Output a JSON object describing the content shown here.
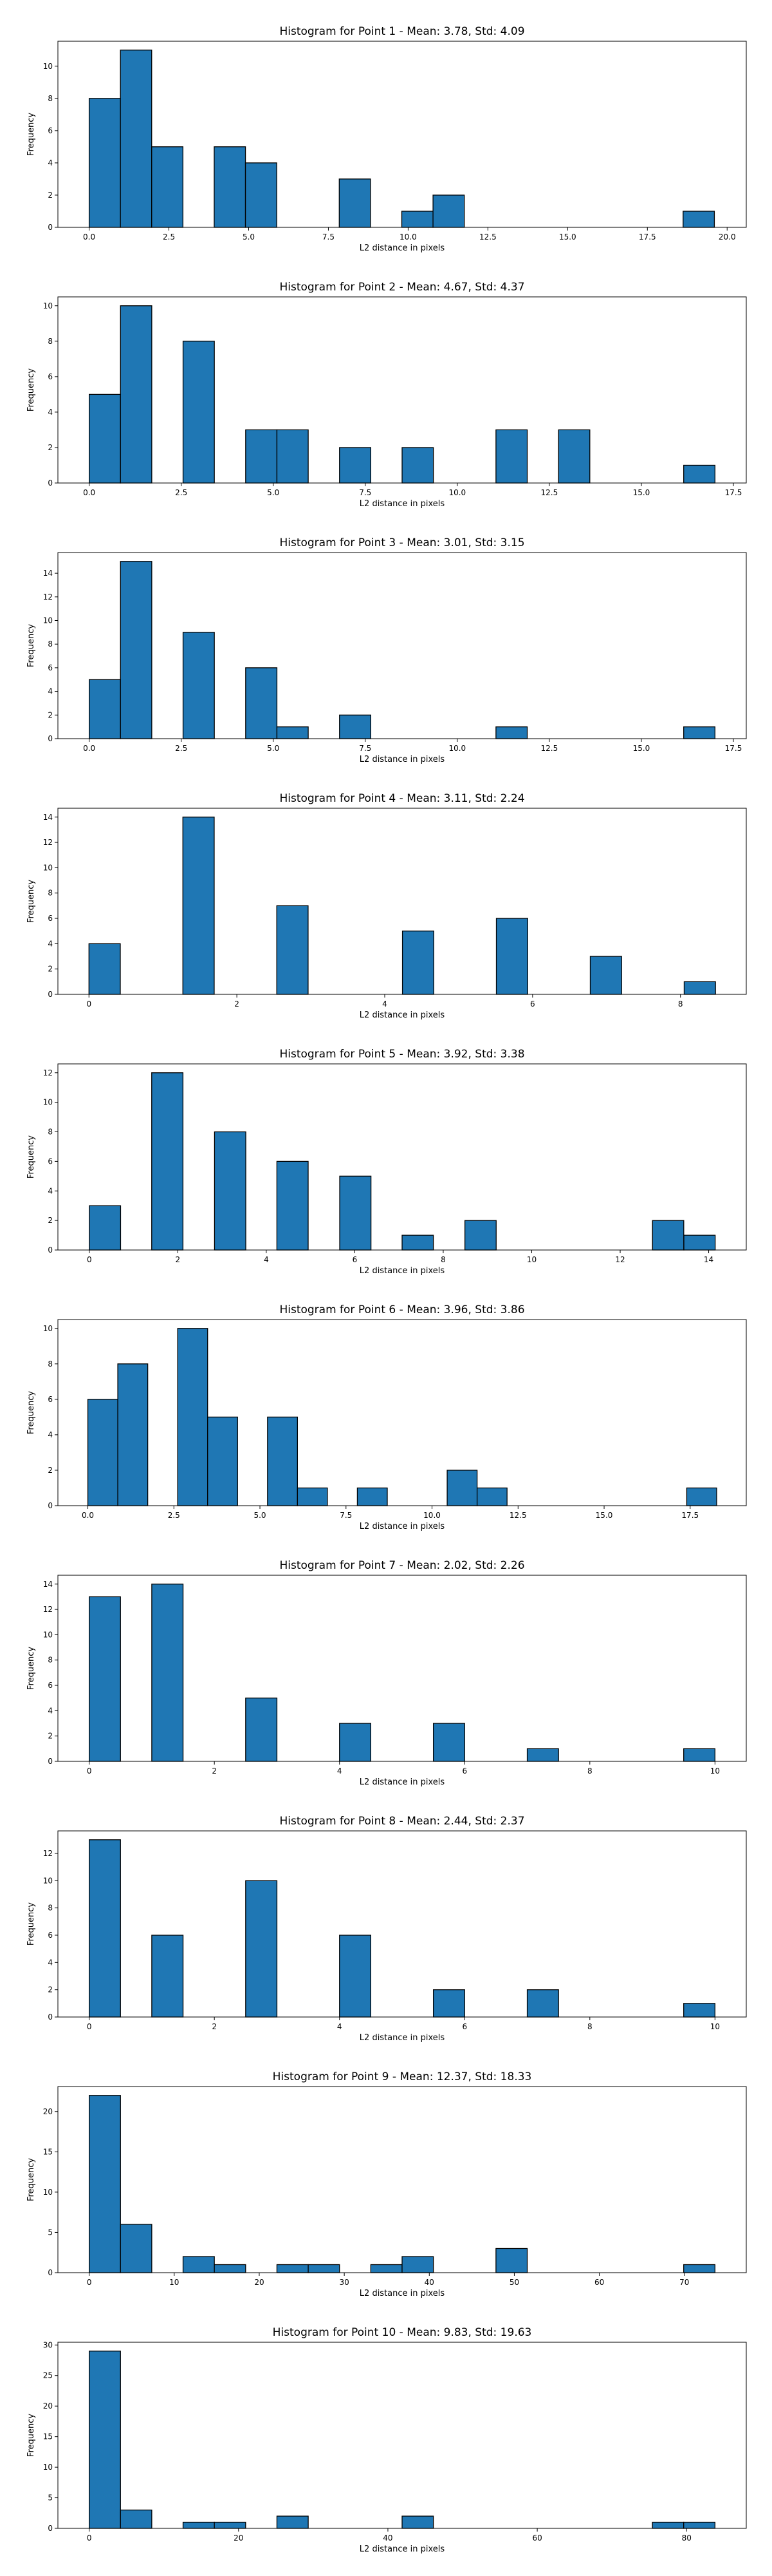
{
  "chart_data": [
    {
      "type": "bar",
      "title": "Histogram for Point 1 - Mean: 3.78, Std: 4.09",
      "xlabel": "L2 distance in pixels",
      "ylabel": "Frequency",
      "xlim": [
        -0.98,
        20.6
      ],
      "ylim": [
        0,
        11.55
      ],
      "xticks": [
        0.0,
        2.5,
        5.0,
        7.5,
        10.0,
        12.5,
        15.0,
        17.5,
        20.0
      ],
      "xtick_labels": [
        "0.0",
        "2.5",
        "5.0",
        "7.5",
        "10.0",
        "12.5",
        "15.0",
        "17.5",
        "20.0"
      ],
      "yticks": [
        0,
        2,
        4,
        6,
        8,
        10
      ],
      "ytick_labels": [
        "0",
        "2",
        "4",
        "6",
        "8",
        "10"
      ],
      "bin_width": 0.98,
      "bins": [
        {
          "x": 0.0,
          "count": 8
        },
        {
          "x": 0.98,
          "count": 11
        },
        {
          "x": 1.96,
          "count": 5
        },
        {
          "x": 3.92,
          "count": 5
        },
        {
          "x": 4.9,
          "count": 4
        },
        {
          "x": 7.84,
          "count": 3
        },
        {
          "x": 9.8,
          "count": 1
        },
        {
          "x": 10.78,
          "count": 2
        },
        {
          "x": 18.62,
          "count": 1
        }
      ]
    },
    {
      "type": "bar",
      "title": "Histogram for Point 2 - Mean: 4.67, Std: 4.37",
      "xlabel": "L2 distance in pixels",
      "ylabel": "Frequency",
      "xlim": [
        -0.85,
        17.85
      ],
      "ylim": [
        0,
        10.5
      ],
      "xticks": [
        0.0,
        2.5,
        5.0,
        7.5,
        10.0,
        12.5,
        15.0,
        17.5
      ],
      "xtick_labels": [
        "0.0",
        "2.5",
        "5.0",
        "7.5",
        "10.0",
        "12.5",
        "15.0",
        "17.5"
      ],
      "yticks": [
        0,
        2,
        4,
        6,
        8,
        10
      ],
      "ytick_labels": [
        "0",
        "2",
        "4",
        "6",
        "8",
        "10"
      ],
      "bin_width": 0.85,
      "bins": [
        {
          "x": 0.0,
          "count": 5
        },
        {
          "x": 0.85,
          "count": 10
        },
        {
          "x": 2.55,
          "count": 8
        },
        {
          "x": 4.25,
          "count": 3
        },
        {
          "x": 5.1,
          "count": 3
        },
        {
          "x": 6.8,
          "count": 2
        },
        {
          "x": 8.5,
          "count": 2
        },
        {
          "x": 11.05,
          "count": 3
        },
        {
          "x": 12.75,
          "count": 3
        },
        {
          "x": 16.15,
          "count": 1
        }
      ]
    },
    {
      "type": "bar",
      "title": "Histogram for Point 3 - Mean: 3.01, Std: 3.15",
      "xlabel": "L2 distance in pixels",
      "ylabel": "Frequency",
      "xlim": [
        -0.85,
        17.85
      ],
      "ylim": [
        0,
        15.75
      ],
      "xticks": [
        0.0,
        2.5,
        5.0,
        7.5,
        10.0,
        12.5,
        15.0,
        17.5
      ],
      "xtick_labels": [
        "0.0",
        "2.5",
        "5.0",
        "7.5",
        "10.0",
        "12.5",
        "15.0",
        "17.5"
      ],
      "yticks": [
        0,
        2,
        4,
        6,
        8,
        10,
        12,
        14
      ],
      "ytick_labels": [
        "0",
        "2",
        "4",
        "6",
        "8",
        "10",
        "12",
        "14"
      ],
      "bin_width": 0.85,
      "bins": [
        {
          "x": 0.0,
          "count": 5
        },
        {
          "x": 0.85,
          "count": 15
        },
        {
          "x": 2.55,
          "count": 9
        },
        {
          "x": 4.25,
          "count": 6
        },
        {
          "x": 5.1,
          "count": 1
        },
        {
          "x": 6.8,
          "count": 2
        },
        {
          "x": 11.05,
          "count": 1
        },
        {
          "x": 16.15,
          "count": 1
        }
      ]
    },
    {
      "type": "bar",
      "title": "Histogram for Point 4 - Mean: 3.11, Std: 2.24",
      "xlabel": "L2 distance in pixels",
      "ylabel": "Frequency",
      "xlim": [
        -0.42,
        8.89
      ],
      "ylim": [
        0,
        14.7
      ],
      "xticks": [
        0,
        2,
        4,
        6,
        8
      ],
      "xtick_labels": [
        "0",
        "2",
        "4",
        "6",
        "8"
      ],
      "yticks": [
        0,
        2,
        4,
        6,
        8,
        10,
        12,
        14
      ],
      "ytick_labels": [
        "0",
        "2",
        "4",
        "6",
        "8",
        "10",
        "12",
        "14"
      ],
      "bin_width": 0.424,
      "bins": [
        {
          "x": 0.0,
          "count": 4
        },
        {
          "x": 1.27,
          "count": 14
        },
        {
          "x": 2.54,
          "count": 7
        },
        {
          "x": 4.24,
          "count": 5
        },
        {
          "x": 5.51,
          "count": 6
        },
        {
          "x": 6.78,
          "count": 3
        },
        {
          "x": 8.05,
          "count": 1
        }
      ]
    },
    {
      "type": "bar",
      "title": "Histogram for Point 5 - Mean: 3.92, Std: 3.38",
      "xlabel": "L2 distance in pixels",
      "ylabel": "Frequency",
      "xlim": [
        -0.71,
        14.85
      ],
      "ylim": [
        0,
        12.6
      ],
      "xticks": [
        0,
        2,
        4,
        6,
        8,
        10,
        12,
        14
      ],
      "xtick_labels": [
        "0",
        "2",
        "4",
        "6",
        "8",
        "10",
        "12",
        "14"
      ],
      "yticks": [
        0,
        2,
        4,
        6,
        8,
        10,
        12
      ],
      "ytick_labels": [
        "0",
        "2",
        "4",
        "6",
        "8",
        "10",
        "12"
      ],
      "bin_width": 0.707,
      "bins": [
        {
          "x": 0.0,
          "count": 3
        },
        {
          "x": 1.41,
          "count": 12
        },
        {
          "x": 2.83,
          "count": 8
        },
        {
          "x": 4.24,
          "count": 6
        },
        {
          "x": 5.66,
          "count": 5
        },
        {
          "x": 7.07,
          "count": 1
        },
        {
          "x": 8.49,
          "count": 2
        },
        {
          "x": 12.73,
          "count": 2
        },
        {
          "x": 13.44,
          "count": 1
        }
      ]
    },
    {
      "type": "bar",
      "title": "Histogram for Point 6 - Mean: 3.96, Std: 3.86",
      "xlabel": "L2 distance in pixels",
      "ylabel": "Frequency",
      "xlim": [
        -0.87,
        19.13
      ],
      "ylim": [
        0,
        10.5
      ],
      "xticks": [
        0.0,
        2.5,
        5.0,
        7.5,
        10.0,
        12.5,
        15.0,
        17.5
      ],
      "xtick_labels": [
        "0.0",
        "2.5",
        "5.0",
        "7.5",
        "10.0",
        "12.5",
        "15.0",
        "17.5"
      ],
      "yticks": [
        0,
        2,
        4,
        6,
        8,
        10
      ],
      "ytick_labels": [
        "0",
        "2",
        "4",
        "6",
        "8",
        "10"
      ],
      "bin_width": 0.87,
      "bins": [
        {
          "x": 0.0,
          "count": 6
        },
        {
          "x": 0.87,
          "count": 8
        },
        {
          "x": 2.61,
          "count": 10
        },
        {
          "x": 3.48,
          "count": 5
        },
        {
          "x": 5.22,
          "count": 5
        },
        {
          "x": 6.09,
          "count": 1
        },
        {
          "x": 7.83,
          "count": 1
        },
        {
          "x": 10.44,
          "count": 2
        },
        {
          "x": 11.31,
          "count": 1
        },
        {
          "x": 17.4,
          "count": 1
        }
      ]
    },
    {
      "type": "bar",
      "title": "Histogram for Point 7 - Mean: 2.02, Std: 2.26",
      "xlabel": "L2 distance in pixels",
      "ylabel": "Frequency",
      "xlim": [
        -0.5,
        10.5
      ],
      "ylim": [
        0,
        14.7
      ],
      "xticks": [
        0,
        2,
        4,
        6,
        8,
        10
      ],
      "xtick_labels": [
        "0",
        "2",
        "4",
        "6",
        "8",
        "10"
      ],
      "yticks": [
        0,
        2,
        4,
        6,
        8,
        10,
        12,
        14
      ],
      "ytick_labels": [
        "0",
        "2",
        "4",
        "6",
        "8",
        "10",
        "12",
        "14"
      ],
      "bin_width": 0.5,
      "bins": [
        {
          "x": 0.0,
          "count": 13
        },
        {
          "x": 1.0,
          "count": 14
        },
        {
          "x": 2.5,
          "count": 5
        },
        {
          "x": 4.0,
          "count": 3
        },
        {
          "x": 5.5,
          "count": 3
        },
        {
          "x": 7.0,
          "count": 1
        },
        {
          "x": 9.5,
          "count": 1
        }
      ]
    },
    {
      "type": "bar",
      "title": "Histogram for Point 8 - Mean: 2.44, Std: 2.37",
      "xlabel": "L2 distance in pixels",
      "ylabel": "Frequency",
      "xlim": [
        -0.5,
        10.5
      ],
      "ylim": [
        0,
        13.65
      ],
      "xticks": [
        0,
        2,
        4,
        6,
        8,
        10
      ],
      "xtick_labels": [
        "0",
        "2",
        "4",
        "6",
        "8",
        "10"
      ],
      "yticks": [
        0,
        2,
        4,
        6,
        8,
        10,
        12
      ],
      "ytick_labels": [
        "0",
        "2",
        "4",
        "6",
        "8",
        "10",
        "12"
      ],
      "bin_width": 0.5,
      "bins": [
        {
          "x": 0.0,
          "count": 13
        },
        {
          "x": 1.0,
          "count": 6
        },
        {
          "x": 2.5,
          "count": 10
        },
        {
          "x": 4.0,
          "count": 6
        },
        {
          "x": 5.5,
          "count": 2
        },
        {
          "x": 7.0,
          "count": 2
        },
        {
          "x": 9.5,
          "count": 1
        }
      ]
    },
    {
      "type": "bar",
      "title": "Histogram for Point 9 - Mean: 12.37, Std: 18.33",
      "xlabel": "L2 distance in pixels",
      "ylabel": "Frequency",
      "xlim": [
        -3.68,
        77.28
      ],
      "ylim": [
        0,
        23.1
      ],
      "xticks": [
        0,
        10,
        20,
        30,
        40,
        50,
        60,
        70
      ],
      "xtick_labels": [
        "0",
        "10",
        "20",
        "30",
        "40",
        "50",
        "60",
        "70"
      ],
      "yticks": [
        0,
        5,
        10,
        15,
        20
      ],
      "ytick_labels": [
        "0",
        "5",
        "10",
        "15",
        "20"
      ],
      "bin_width": 3.68,
      "bins": [
        {
          "x": 0.0,
          "count": 22
        },
        {
          "x": 3.68,
          "count": 6
        },
        {
          "x": 11.04,
          "count": 2
        },
        {
          "x": 14.72,
          "count": 1
        },
        {
          "x": 22.08,
          "count": 1
        },
        {
          "x": 25.76,
          "count": 1
        },
        {
          "x": 33.12,
          "count": 1
        },
        {
          "x": 36.8,
          "count": 2
        },
        {
          "x": 47.84,
          "count": 3
        },
        {
          "x": 69.92,
          "count": 1
        }
      ]
    },
    {
      "type": "bar",
      "title": "Histogram for Point 10 - Mean: 9.83, Std: 19.63",
      "xlabel": "L2 distance in pixels",
      "ylabel": "Frequency",
      "xlim": [
        -4.19,
        87.99
      ],
      "ylim": [
        0,
        30.45
      ],
      "xticks": [
        0,
        20,
        40,
        60,
        80
      ],
      "xtick_labels": [
        "0",
        "20",
        "40",
        "60",
        "80"
      ],
      "yticks": [
        0,
        5,
        10,
        15,
        20,
        25,
        30
      ],
      "ytick_labels": [
        "0",
        "5",
        "10",
        "15",
        "20",
        "25",
        "30"
      ],
      "bin_width": 4.19,
      "bins": [
        {
          "x": 0.0,
          "count": 29
        },
        {
          "x": 4.19,
          "count": 3
        },
        {
          "x": 12.57,
          "count": 1
        },
        {
          "x": 16.76,
          "count": 1
        },
        {
          "x": 25.14,
          "count": 2
        },
        {
          "x": 41.9,
          "count": 2
        },
        {
          "x": 75.42,
          "count": 1
        },
        {
          "x": 79.61,
          "count": 1
        }
      ]
    }
  ]
}
